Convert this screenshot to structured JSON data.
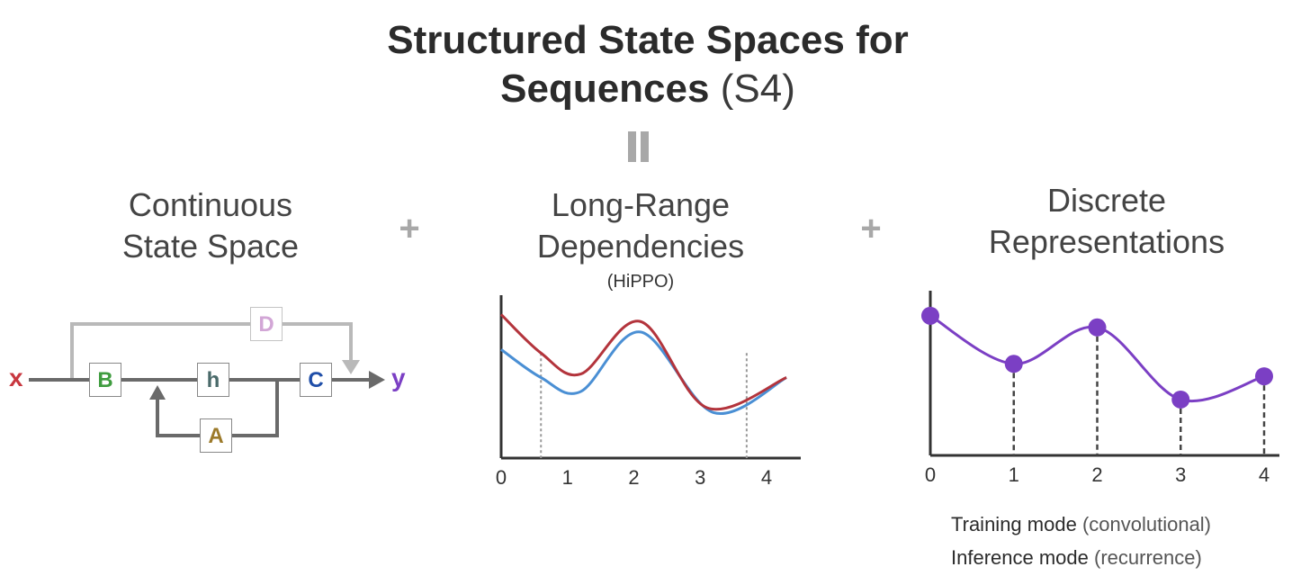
{
  "title": {
    "bold": "Structured State Spaces for",
    "bold2": "Sequences",
    "light": "(S4)"
  },
  "equals_sign": "II",
  "plus_sign": "+",
  "panels": {
    "continuous": {
      "line1": "Continuous",
      "line2": "State Space"
    },
    "hippo": {
      "line1": "Long-Range",
      "line2": "Dependencies",
      "sub": "(HiPPO)"
    },
    "discrete": {
      "line1": "Discrete",
      "line2": "Representations"
    }
  },
  "ssm_diagram": {
    "input": "x",
    "output": "y",
    "blocks": {
      "B": "B",
      "h": "h",
      "C": "C",
      "A": "A",
      "D": "D"
    },
    "colors": {
      "x": "#c8373f",
      "y": "#7b3fc4",
      "B": "#3f9c3f",
      "h": "#4a6a6a",
      "C": "#1f4ea8",
      "A": "#9c7a2a",
      "D": "#d2a6d6",
      "line": "#6a6a6a",
      "skip": "#b9b9b9"
    }
  },
  "chart_data": [
    {
      "type": "line",
      "x_ticks": [
        "0",
        "1",
        "2",
        "3",
        "4"
      ],
      "series": [
        {
          "color": "#b3343c",
          "x": [
            0,
            0.6,
            1.2,
            2.1,
            3.1,
            4.3
          ],
          "y": [
            2.05,
            1.5,
            1.2,
            1.95,
            0.72,
            1.15
          ]
        },
        {
          "color": "#4a8fd4",
          "x": [
            0,
            0.6,
            1.2,
            2.1,
            3.2,
            4.3
          ],
          "y": [
            1.55,
            1.15,
            0.95,
            1.8,
            0.65,
            1.15
          ]
        }
      ],
      "markers_x": [
        0.6,
        3.7
      ]
    },
    {
      "type": "line",
      "x_ticks": [
        "0",
        "1",
        "2",
        "3",
        "4"
      ],
      "points": [
        {
          "x": 0,
          "y": 1.8
        },
        {
          "x": 1,
          "y": 1.18
        },
        {
          "x": 2,
          "y": 1.65
        },
        {
          "x": 3,
          "y": 0.72
        },
        {
          "x": 4,
          "y": 1.02
        }
      ],
      "color": "#7b3fc4"
    }
  ],
  "modes": [
    {
      "label": "Training mode",
      "detail": "(convolutional)"
    },
    {
      "label": "Inference mode",
      "detail": "(recurrence)"
    }
  ]
}
